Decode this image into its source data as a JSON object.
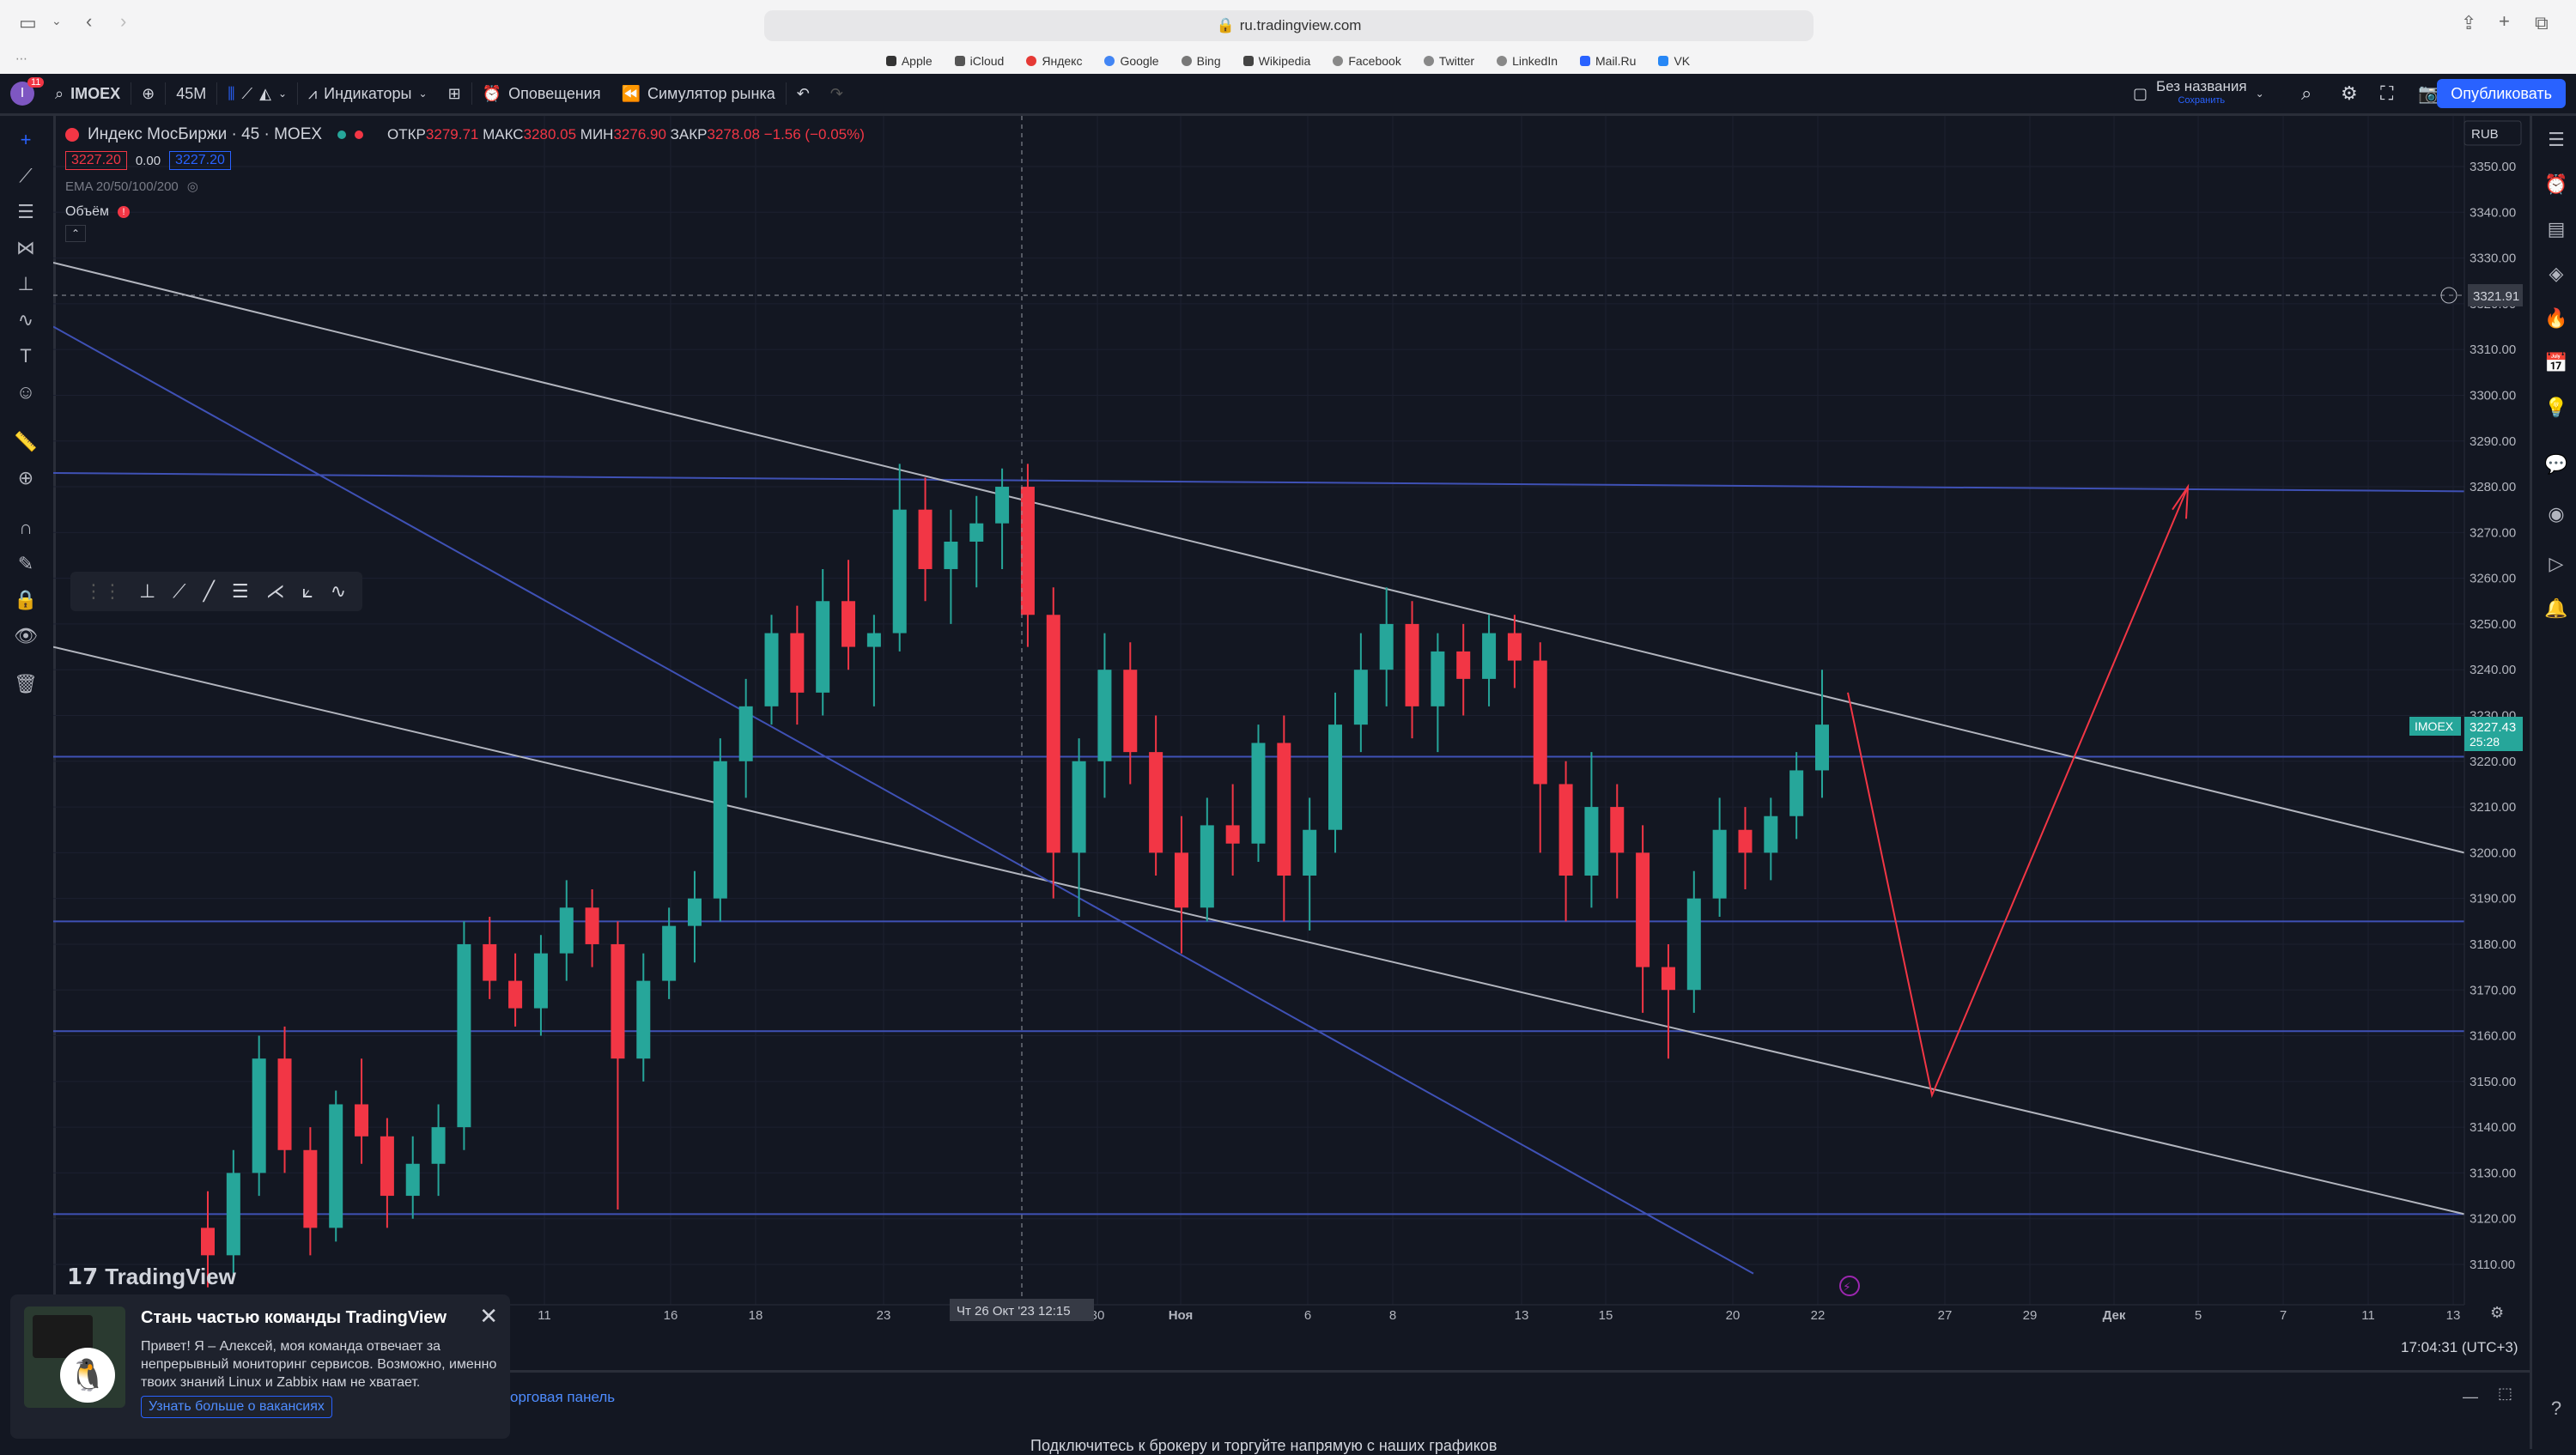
{
  "browser": {
    "url": "ru.tradingview.com",
    "bookmarks": [
      "Apple",
      "iCloud",
      "Яндекс",
      "Google",
      "Bing",
      "Wikipedia",
      "Facebook",
      "Twitter",
      "LinkedIn",
      "Mail.Ru",
      "VK"
    ]
  },
  "toolbar": {
    "avatar_badge": "11",
    "symbol": "IMOEX",
    "interval": "45M",
    "indicators": "Индикаторы",
    "alerts": "Оповещения",
    "replay": "Симулятор рынка",
    "layout_name": "Без названия",
    "layout_save": "Сохранить",
    "publish": "Опубликовать"
  },
  "legend": {
    "title": "Индекс МосБиржи · 45 · MOEX",
    "open_label": "ОТКР",
    "open": "3279.71",
    "high_label": "МАКС",
    "high": "3280.05",
    "low_label": "МИН",
    "low": "3276.90",
    "close_label": "ЗАКР",
    "close": "3278.08",
    "change": "−1.56 (−0.05%)",
    "bid": "3227.20",
    "spread": "0.00",
    "ask": "3227.20",
    "ema": "EMA 20/50/100/200",
    "volume": "Объём"
  },
  "watermark": "TradingView",
  "currency": "RUB",
  "crosshair_price": "3321.91",
  "crosshair_time": "Чт 26 Окт '23   12:15",
  "last_price": {
    "symbol": "IMOEX",
    "price": "3227.43",
    "countdown": "25:28"
  },
  "clock": "17:04:31 (UTC+3)",
  "notice": {
    "title": "Стань частью команды TradingView",
    "text": "Привет! Я – Алексей, моя команда отвечает за непрерывный мониторинг сервисов. Возможно, именно твоих знаний Linux и Zabbix нам не хватает.",
    "link": "Узнать больше о вакансиях"
  },
  "bottom": {
    "trading_panel": "орговая панель",
    "connect": "Подключитесь к брокеру и торгуйте напрямую с наших графиков"
  },
  "chart_data": {
    "type": "candlestick",
    "ylim": [
      3100,
      3355
    ],
    "y_ticks": [
      3110,
      3120,
      3130,
      3140,
      3150,
      3160,
      3170,
      3180,
      3190,
      3200,
      3210,
      3220,
      3230,
      3240,
      3250,
      3260,
      3270,
      3280,
      3290,
      3300,
      3310,
      3320,
      3330,
      3340,
      3350
    ],
    "x_ticks": [
      "11",
      "16",
      "18",
      "23",
      "30",
      "Ноя",
      "6",
      "8",
      "13",
      "15",
      "20",
      "22",
      "27",
      "29",
      "Дек",
      "5",
      "7",
      "11",
      "13"
    ],
    "ohlc": [
      [
        3118,
        3126,
        3105,
        3112
      ],
      [
        3112,
        3135,
        3108,
        3130
      ],
      [
        3130,
        3160,
        3125,
        3155
      ],
      [
        3155,
        3162,
        3130,
        3135
      ],
      [
        3135,
        3140,
        3112,
        3118
      ],
      [
        3118,
        3148,
        3115,
        3145
      ],
      [
        3145,
        3155,
        3132,
        3138
      ],
      [
        3138,
        3142,
        3118,
        3125
      ],
      [
        3125,
        3138,
        3120,
        3132
      ],
      [
        3132,
        3145,
        3125,
        3140
      ],
      [
        3140,
        3185,
        3135,
        3180
      ],
      [
        3180,
        3186,
        3168,
        3172
      ],
      [
        3172,
        3178,
        3162,
        3166
      ],
      [
        3166,
        3182,
        3160,
        3178
      ],
      [
        3178,
        3194,
        3172,
        3188
      ],
      [
        3188,
        3192,
        3175,
        3180
      ],
      [
        3180,
        3185,
        3122,
        3155
      ],
      [
        3155,
        3178,
        3150,
        3172
      ],
      [
        3172,
        3188,
        3168,
        3184
      ],
      [
        3184,
        3196,
        3176,
        3190
      ],
      [
        3190,
        3225,
        3185,
        3220
      ],
      [
        3220,
        3238,
        3212,
        3232
      ],
      [
        3232,
        3252,
        3228,
        3248
      ],
      [
        3248,
        3254,
        3228,
        3235
      ],
      [
        3235,
        3262,
        3230,
        3255
      ],
      [
        3255,
        3264,
        3240,
        3245
      ],
      [
        3245,
        3252,
        3232,
        3248
      ],
      [
        3248,
        3285,
        3244,
        3275
      ],
      [
        3275,
        3282,
        3255,
        3262
      ],
      [
        3262,
        3275,
        3250,
        3268
      ],
      [
        3268,
        3278,
        3258,
        3272
      ],
      [
        3272,
        3284,
        3262,
        3280
      ],
      [
        3280,
        3285,
        3245,
        3252
      ],
      [
        3252,
        3258,
        3190,
        3200
      ],
      [
        3200,
        3225,
        3186,
        3220
      ],
      [
        3220,
        3248,
        3212,
        3240
      ],
      [
        3240,
        3246,
        3215,
        3222
      ],
      [
        3222,
        3230,
        3195,
        3200
      ],
      [
        3200,
        3208,
        3178,
        3188
      ],
      [
        3188,
        3212,
        3185,
        3206
      ],
      [
        3206,
        3215,
        3195,
        3202
      ],
      [
        3202,
        3228,
        3198,
        3224
      ],
      [
        3224,
        3230,
        3185,
        3195
      ],
      [
        3195,
        3212,
        3183,
        3205
      ],
      [
        3205,
        3235,
        3200,
        3228
      ],
      [
        3228,
        3248,
        3222,
        3240
      ],
      [
        3240,
        3258,
        3232,
        3250
      ],
      [
        3250,
        3255,
        3225,
        3232
      ],
      [
        3232,
        3248,
        3222,
        3244
      ],
      [
        3244,
        3250,
        3230,
        3238
      ],
      [
        3238,
        3252,
        3232,
        3248
      ],
      [
        3248,
        3252,
        3236,
        3242
      ],
      [
        3242,
        3246,
        3200,
        3215
      ],
      [
        3215,
        3220,
        3185,
        3195
      ],
      [
        3195,
        3222,
        3188,
        3210
      ],
      [
        3210,
        3215,
        3190,
        3200
      ],
      [
        3200,
        3206,
        3165,
        3175
      ],
      [
        3175,
        3180,
        3155,
        3170
      ],
      [
        3170,
        3196,
        3165,
        3190
      ],
      [
        3190,
        3212,
        3186,
        3205
      ],
      [
        3205,
        3210,
        3192,
        3200
      ],
      [
        3200,
        3212,
        3194,
        3208
      ],
      [
        3208,
        3222,
        3203,
        3218
      ],
      [
        3218,
        3240,
        3212,
        3228
      ]
    ]
  }
}
